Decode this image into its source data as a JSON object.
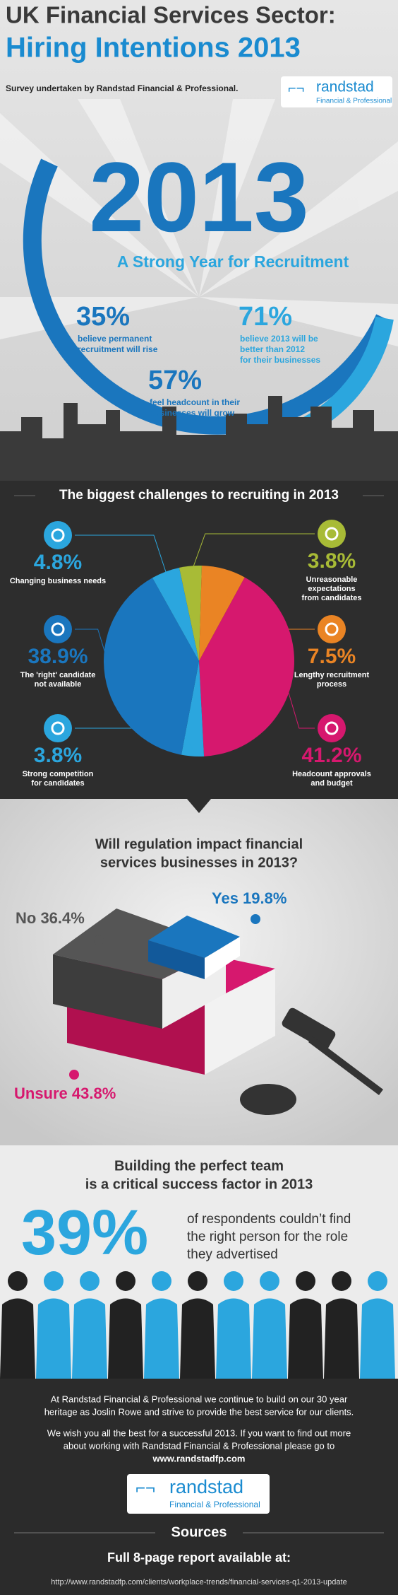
{
  "header": {
    "title_line1": "UK Financial Services Sector:",
    "title_line2": "Hiring Intentions 2013",
    "subtitle": "Survey undertaken by Randstad Financial & Professional.",
    "logo_name": "randstad",
    "logo_tagline": "Financial & Professional"
  },
  "outlook": {
    "year": "2013",
    "tagline": "A Strong Year for Recruitment",
    "stats": [
      {
        "value": "35%",
        "lines": [
          "believe permanent",
          "recruitment will rise"
        ]
      },
      {
        "value": "71%",
        "lines": [
          "believe 2013 will be",
          "better than 2012",
          "for their businesses"
        ]
      },
      {
        "value": "57%",
        "lines": [
          "feel headcount in their",
          "businesses will grow"
        ]
      }
    ]
  },
  "challenges": {
    "type": "pie",
    "title": "The biggest challenges to recruiting in 2013",
    "slices": [
      {
        "lines": [
          "Unreasonable",
          "expectations",
          "from candidates"
        ],
        "value": 3.8,
        "label": "3.8%",
        "color": "#a8bb36"
      },
      {
        "lines": [
          "Lengthy recruitment",
          "process"
        ],
        "value": 7.5,
        "label": "7.5%",
        "color": "#ea8424"
      },
      {
        "lines": [
          "Headcount approvals",
          "and budget"
        ],
        "value": 41.2,
        "label": "41.2%",
        "color": "#d6186e"
      },
      {
        "lines": [
          "Strong competition",
          "for candidates"
        ],
        "value": 3.8,
        "label": "3.8%",
        "color": "#2ba6de"
      },
      {
        "lines": [
          "The 'right' candidate",
          "not available"
        ],
        "value": 38.9,
        "label": "38.9%",
        "color": "#1a76be"
      },
      {
        "lines": [
          "Changing business needs"
        ],
        "value": 4.8,
        "label": "4.8%",
        "color": "#2ba6de"
      }
    ]
  },
  "regulation": {
    "title_lines": [
      "Will regulation impact financial",
      "services businesses in 2013?"
    ],
    "answers": [
      {
        "label": "Yes 19.8%",
        "color": "#1a76be"
      },
      {
        "label": "No 36.4%",
        "color": "#555555"
      },
      {
        "label": "Unsure 43.8%",
        "color": "#d6186e"
      }
    ]
  },
  "team": {
    "title_lines": [
      "Building the perfect team",
      "is a critical success factor in 2013"
    ],
    "value": "39%",
    "lines": [
      "of respondents couldn’t find",
      "the right person for the role",
      "they advertised"
    ]
  },
  "footer": {
    "paragraph1": [
      "At Randstad Financial & Professional we continue to build on our 30 year",
      "heritage as Joslin Rowe and strive to provide the best service for our clients."
    ],
    "paragraph2": [
      "We wish you all the best for a successful 2013. If you want to find out more",
      "about working with Randstad Financial & Professional please go to"
    ],
    "website": "www.randstadfp.com",
    "logo_name": "randstad",
    "logo_tagline": "Financial & Professional",
    "sources_title": "Sources",
    "report_line": "Full 8-page report available at:",
    "url": "http://www.randstadfp.com/clients/workplace-trends/financial-services-q1-2013-update"
  }
}
